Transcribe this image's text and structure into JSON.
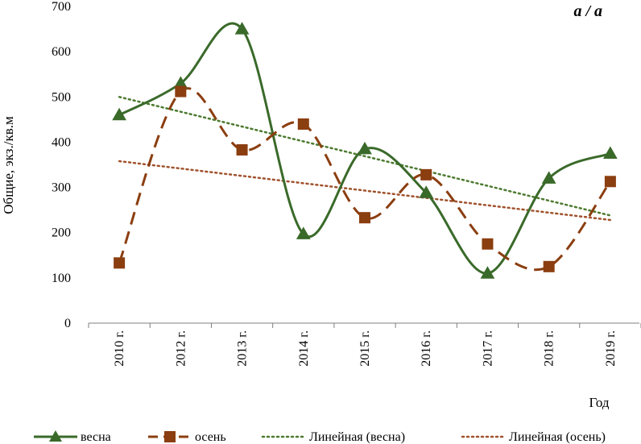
{
  "chart_data": {
    "type": "line",
    "panel_label": "а / а",
    "xlabel": "Год",
    "ylabel": "Общие, экз./кв.м",
    "categories": [
      "2010 г.",
      "2012 г.",
      "2013 г.",
      "2014 г.",
      "2015 г.",
      "2016 г.",
      "2017 г.",
      "2018 г.",
      "2019 г."
    ],
    "yticks": [
      "0",
      "100",
      "200",
      "300",
      "400",
      "500",
      "600",
      "700"
    ],
    "ylim": [
      0,
      700
    ],
    "series": [
      {
        "name": "весна",
        "color": "#3a6a2a",
        "style": "smooth-solid",
        "marker": "triangle",
        "values": [
          460,
          530,
          650,
          197,
          385,
          288,
          110,
          320,
          375
        ]
      },
      {
        "name": "осень",
        "color": "#8b3e10",
        "style": "smooth-dashed",
        "marker": "square",
        "values": [
          133,
          512,
          383,
          440,
          233,
          328,
          175,
          125,
          313
        ]
      }
    ],
    "trendlines": [
      {
        "name": "Линейная (весна)",
        "color": "#4c7a2f",
        "start": 500,
        "end": 238
      },
      {
        "name": "Линейная (осень)",
        "color": "#a0522d",
        "start": 358,
        "end": 228
      }
    ]
  }
}
